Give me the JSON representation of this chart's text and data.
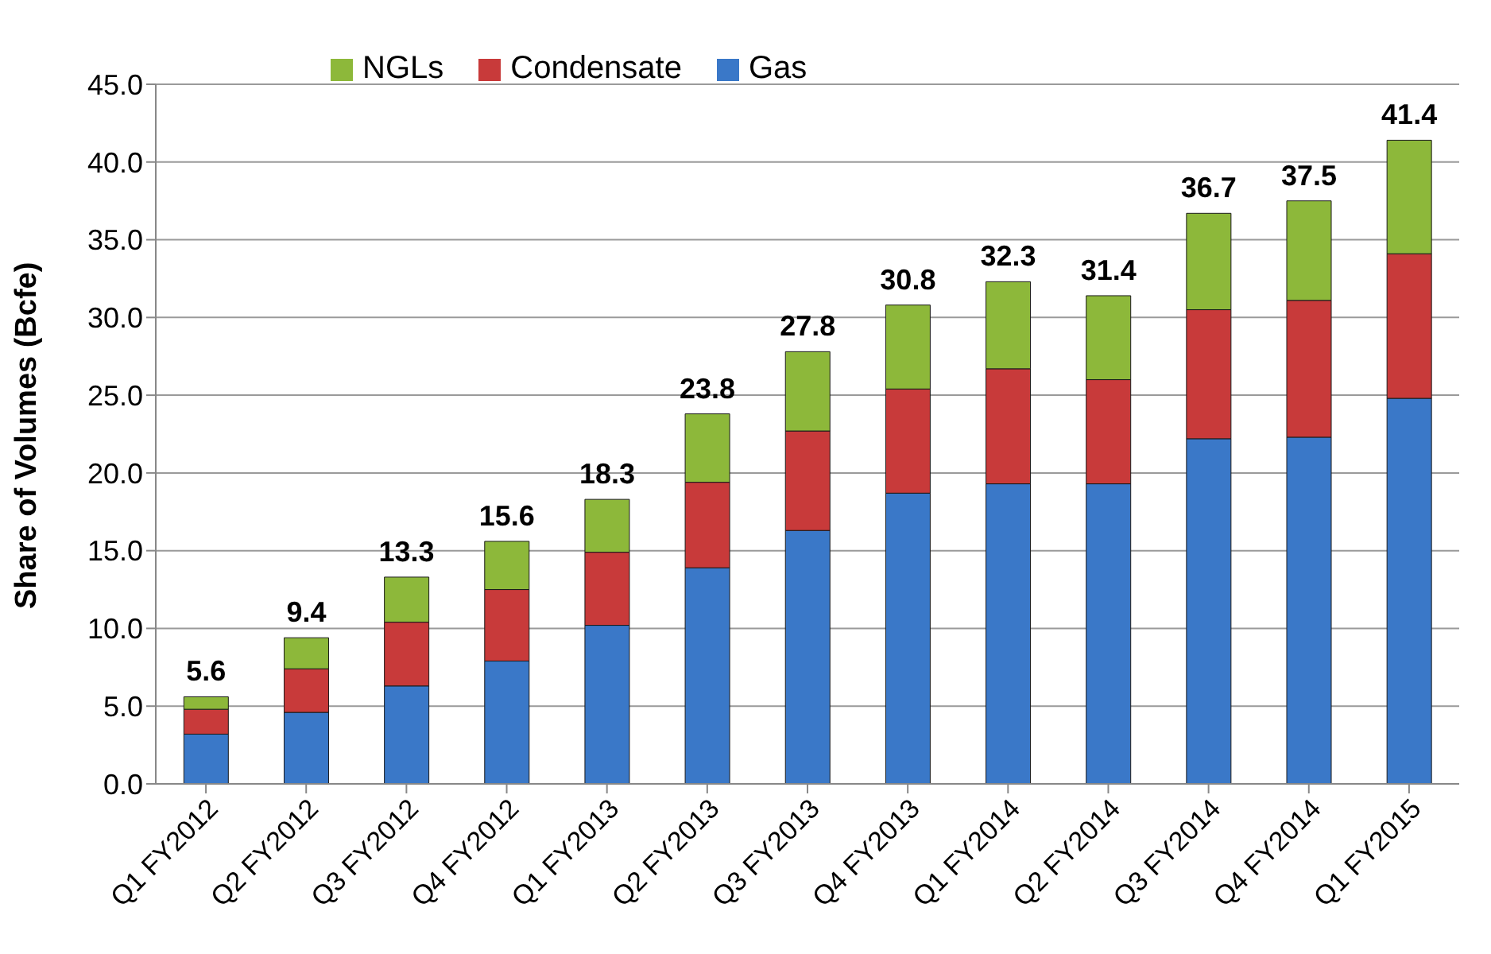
{
  "chart_data": {
    "type": "bar",
    "stacked": true,
    "ylabel": "Share of Volumes (Bcfe)",
    "categories": [
      "Q1 FY2012",
      "Q2 FY2012",
      "Q3 FY2012",
      "Q4 FY2012",
      "Q1 FY2013",
      "Q2 FY2013",
      "Q3 FY2013",
      "Q4 FY2013",
      "Q1 FY2014",
      "Q2 FY2014",
      "Q3 FY2014",
      "Q4 FY2014",
      "Q1 FY2015"
    ],
    "series": [
      {
        "name": "Gas",
        "color": "#3a78c8",
        "values": [
          3.2,
          4.6,
          6.3,
          7.9,
          10.2,
          13.9,
          16.3,
          18.7,
          19.3,
          19.3,
          22.2,
          22.3,
          24.8
        ]
      },
      {
        "name": "Condensate",
        "color": "#c83a3a",
        "values": [
          1.6,
          2.8,
          4.1,
          4.6,
          4.7,
          5.5,
          6.4,
          6.7,
          7.4,
          6.7,
          8.3,
          8.8,
          9.3
        ]
      },
      {
        "name": "NGLs",
        "color": "#8db83a",
        "values": [
          0.8,
          2.0,
          2.9,
          3.1,
          3.4,
          4.4,
          5.1,
          5.4,
          5.6,
          5.4,
          6.2,
          6.4,
          7.3
        ]
      }
    ],
    "totals": [
      "5.6",
      "9.4",
      "13.3",
      "15.6",
      "18.3",
      "23.8",
      "27.8",
      "30.8",
      "32.3",
      "31.4",
      "36.7",
      "37.5",
      "41.4"
    ],
    "ylim": [
      0,
      45
    ],
    "yticks": [
      {
        "value": 0,
        "label": "0.0"
      },
      {
        "value": 5,
        "label": "5.0"
      },
      {
        "value": 10,
        "label": "10.0"
      },
      {
        "value": 15,
        "label": "15.0"
      },
      {
        "value": 20,
        "label": "20.0"
      },
      {
        "value": 25,
        "label": "25.0"
      },
      {
        "value": 30,
        "label": "30.0"
      },
      {
        "value": 35,
        "label": "35.0"
      },
      {
        "value": 40,
        "label": "40.0"
      },
      {
        "value": 45,
        "label": "45.0"
      }
    ],
    "grid": "y",
    "legend": "top left"
  }
}
